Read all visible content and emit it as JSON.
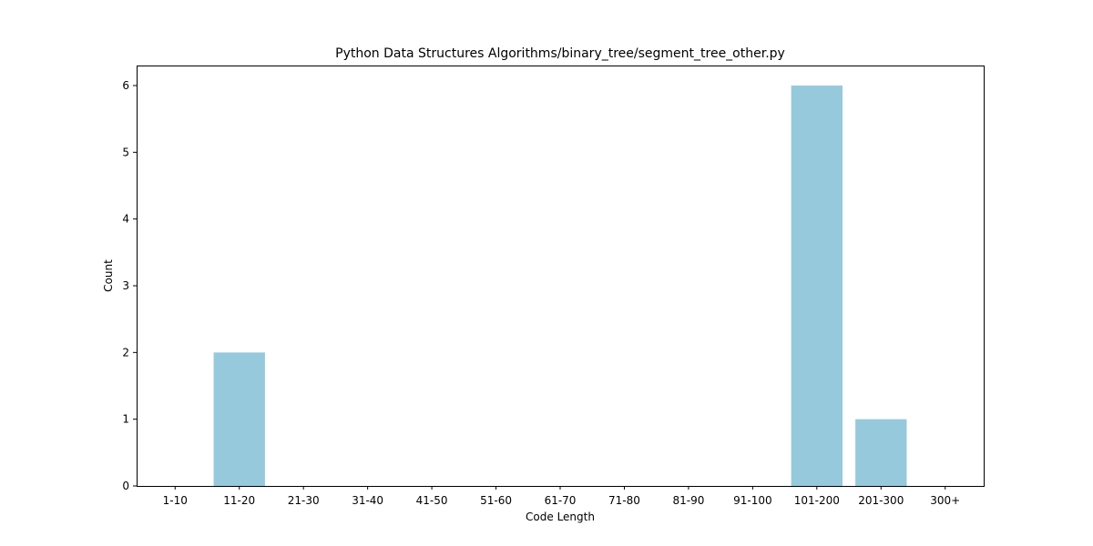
{
  "chart_data": {
    "type": "bar",
    "title": "Python Data Structures Algorithms/binary_tree/segment_tree_other.py",
    "xlabel": "Code Length",
    "ylabel": "Count",
    "categories": [
      "1-10",
      "11-20",
      "21-30",
      "31-40",
      "41-50",
      "51-60",
      "61-70",
      "71-80",
      "81-90",
      "91-100",
      "101-200",
      "201-300",
      "300+"
    ],
    "values": [
      0,
      2,
      0,
      0,
      0,
      0,
      0,
      0,
      0,
      0,
      6,
      1,
      0
    ],
    "ylim": [
      0,
      6.3
    ],
    "yticks": [
      0,
      1,
      2,
      3,
      4,
      5,
      6
    ],
    "grid": false,
    "legend": false,
    "bar_color": "#96c9dc"
  }
}
